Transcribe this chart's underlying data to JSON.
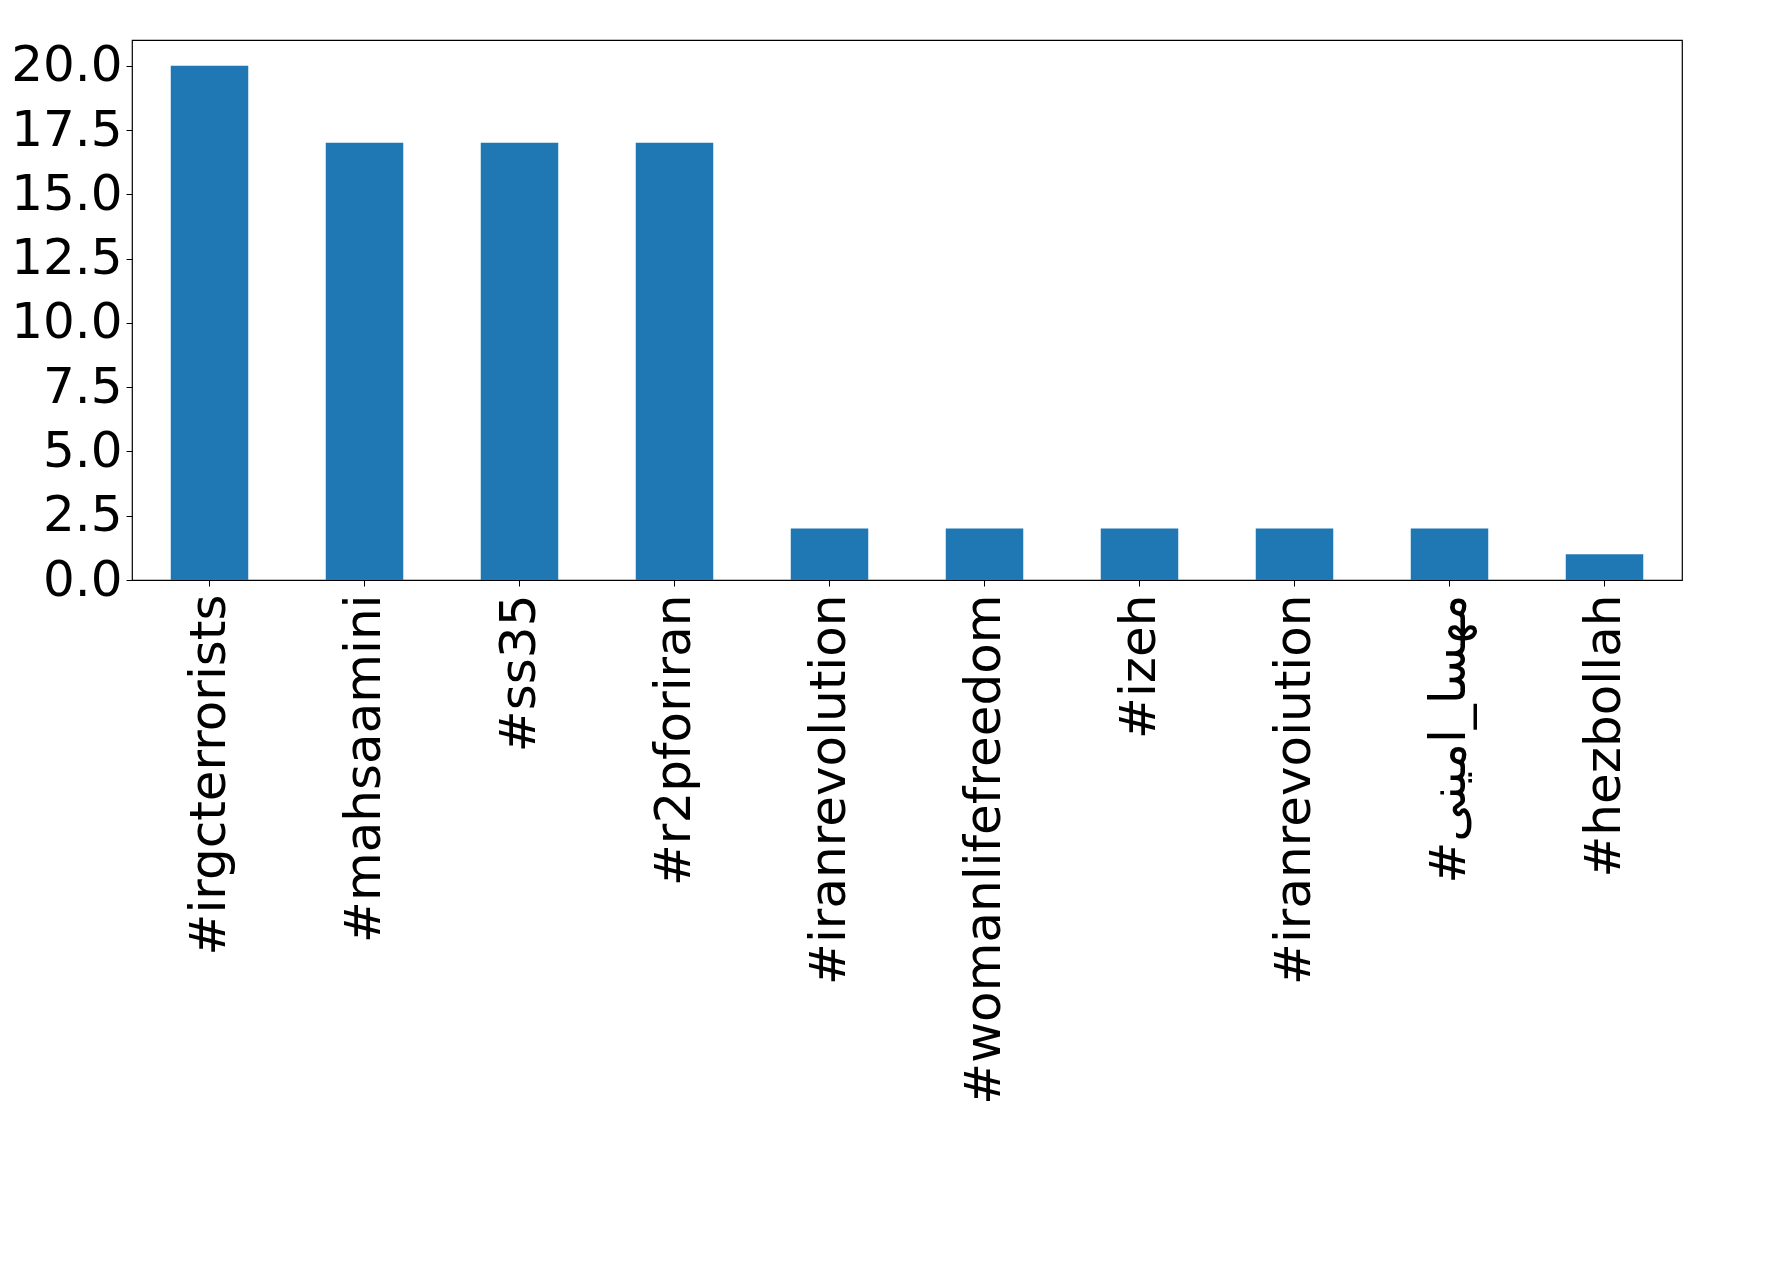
{
  "chart_data": {
    "type": "bar",
    "categories": [
      "#irgcterrorists",
      "#mahsaamini",
      "#ss35",
      "#r2pforiran",
      "#iranrevolution",
      "#womanlifefreedom",
      "#izeh",
      "#iranrevoiution",
      "#مهسا_امینی",
      "#hezbollah"
    ],
    "values": [
      20,
      17,
      17,
      17,
      2,
      2,
      2,
      2,
      2,
      1
    ],
    "color": "#1f77b4",
    "ylim": [
      0,
      21
    ],
    "yticks": [
      {
        "value": 0,
        "label": "0.0"
      },
      {
        "value": 2.5,
        "label": "2.5"
      },
      {
        "value": 5,
        "label": "5.0"
      },
      {
        "value": 7.5,
        "label": "7.5"
      },
      {
        "value": 10,
        "label": "10.0"
      },
      {
        "value": 12.5,
        "label": "12.5"
      },
      {
        "value": 15,
        "label": "15.0"
      },
      {
        "value": 17.5,
        "label": "17.5"
      },
      {
        "value": 20,
        "label": "20.0"
      }
    ],
    "grid": false
  }
}
